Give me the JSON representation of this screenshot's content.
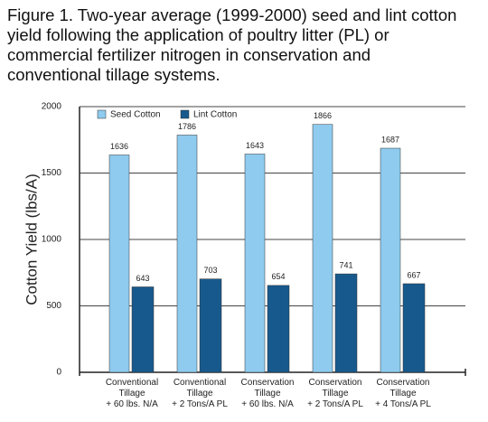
{
  "chart_data": {
    "type": "bar",
    "title": "Figure 1. Two-year average (1999-2000) seed and lint cotton yield following the application of poultry litter (PL) or commercial fertilizer nitrogen in conservation and conventional tillage systems.",
    "y_label": "Cotton Yield (lbs/A)",
    "categories": [
      "Conventional\nTillage\n+ 60 lbs. N/A",
      "Conventional\nTillage\n+ 2 Tons/A PL",
      "Conservation\nTillage\n+ 60 lbs. N/A",
      "Conservation\nTillage\n+ 2 Tons/A PL",
      "Conservation\nTillage\n+ 4 Tons/A PL"
    ],
    "series": [
      {
        "name": "Seed Cotton",
        "color": "#8ecbef",
        "values": [
          1636,
          1786,
          1643,
          1866,
          1687
        ]
      },
      {
        "name": "Lint Cotton",
        "color": "#17598c",
        "values": [
          643,
          703,
          654,
          741,
          667
        ]
      }
    ],
    "ylim": [
      0,
      2000
    ],
    "yticks": [
      0,
      500,
      1000,
      1500,
      2000
    ],
    "grid": true,
    "legend": "top-left"
  }
}
